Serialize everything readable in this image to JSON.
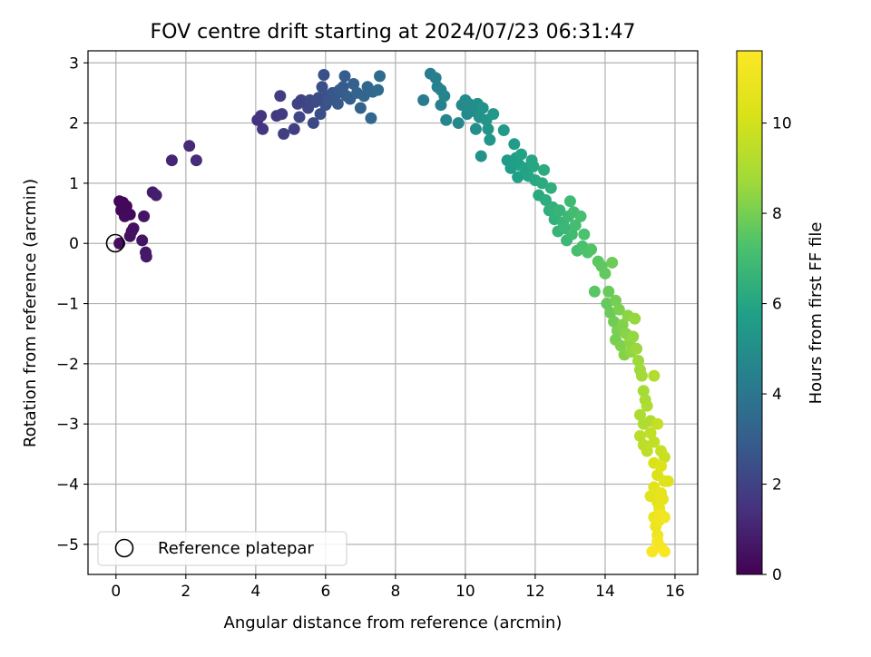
{
  "chart_data": {
    "type": "scatter",
    "title": "FOV centre drift starting at 2024/07/23 06:31:47",
    "xlabel": "Angular distance from reference (arcmin)",
    "ylabel": "Rotation from reference (arcmin)",
    "xlim": [
      -0.8,
      16.65
    ],
    "ylim": [
      -5.5,
      3.2
    ],
    "xticks": [
      0,
      2,
      4,
      6,
      8,
      10,
      12,
      14,
      16
    ],
    "yticks": [
      3,
      2,
      1,
      0,
      -1,
      -2,
      -3,
      -4,
      -5
    ],
    "grid": true,
    "legend": {
      "placement": "lower-left",
      "entries": [
        {
          "label": "Reference platepar",
          "marker": "open-circle"
        }
      ]
    },
    "reference_point": {
      "x": 0,
      "y": 0
    },
    "colorbar": {
      "label": "Hours from first FF file",
      "range": [
        0,
        11.6
      ],
      "ticks": [
        0,
        2,
        4,
        6,
        8,
        10
      ],
      "colormap": "viridis"
    },
    "series": [
      {
        "points": [
          [
            0.1,
            0.7,
            0.1
          ],
          [
            0.2,
            0.68,
            0.15
          ],
          [
            0.3,
            0.62,
            0.2
          ],
          [
            0.15,
            0.55,
            0.2
          ],
          [
            0.35,
            0.5,
            0.25
          ],
          [
            0.25,
            0.45,
            0.3
          ],
          [
            0.4,
            0.48,
            0.3
          ],
          [
            0.1,
            0.0,
            0.35
          ],
          [
            0.45,
            0.2,
            0.4
          ],
          [
            0.5,
            0.25,
            0.45
          ],
          [
            0.4,
            0.12,
            0.5
          ],
          [
            0.8,
            0.45,
            0.55
          ],
          [
            0.75,
            0.05,
            0.6
          ],
          [
            0.85,
            -0.15,
            0.65
          ],
          [
            0.87,
            -0.22,
            0.7
          ],
          [
            1.05,
            0.85,
            0.8
          ],
          [
            1.15,
            0.8,
            0.9
          ],
          [
            1.6,
            1.38,
            1.1
          ],
          [
            2.1,
            1.62,
            1.2
          ],
          [
            2.3,
            1.38,
            1.3
          ],
          [
            4.05,
            2.05,
            1.5
          ],
          [
            4.15,
            2.12,
            1.55
          ],
          [
            4.2,
            1.9,
            1.6
          ],
          [
            4.6,
            2.12,
            1.7
          ],
          [
            4.75,
            2.15,
            1.75
          ],
          [
            4.7,
            2.45,
            1.8
          ],
          [
            4.8,
            1.82,
            1.85
          ],
          [
            5.1,
            1.9,
            1.9
          ],
          [
            5.2,
            2.32,
            2.0
          ],
          [
            5.3,
            2.38,
            2.05
          ],
          [
            5.25,
            2.1,
            2.1
          ],
          [
            5.5,
            2.25,
            2.15
          ],
          [
            5.55,
            2.38,
            2.2
          ],
          [
            5.65,
            2.0,
            2.25
          ],
          [
            5.7,
            2.35,
            2.3
          ],
          [
            5.8,
            2.42,
            2.35
          ],
          [
            5.85,
            2.15,
            2.4
          ],
          [
            5.9,
            2.6,
            2.45
          ],
          [
            5.95,
            2.8,
            2.5
          ],
          [
            6.0,
            2.3,
            2.55
          ],
          [
            6.05,
            2.45,
            2.6
          ],
          [
            6.1,
            2.38,
            2.65
          ],
          [
            6.2,
            2.5,
            2.7
          ],
          [
            6.3,
            2.48,
            2.75
          ],
          [
            6.35,
            2.32,
            2.8
          ],
          [
            6.4,
            2.55,
            2.85
          ],
          [
            6.5,
            2.6,
            2.9
          ],
          [
            6.55,
            2.78,
            2.95
          ],
          [
            6.6,
            2.45,
            3.0
          ],
          [
            6.7,
            2.4,
            3.05
          ],
          [
            6.8,
            2.65,
            3.1
          ],
          [
            6.9,
            2.5,
            3.15
          ],
          [
            7.0,
            2.25,
            3.2
          ],
          [
            7.1,
            2.45,
            3.3
          ],
          [
            7.2,
            2.6,
            3.35
          ],
          [
            7.3,
            2.08,
            3.4
          ],
          [
            7.35,
            2.52,
            3.45
          ],
          [
            7.5,
            2.55,
            3.5
          ],
          [
            7.55,
            2.78,
            3.55
          ],
          [
            8.8,
            2.38,
            4.2
          ],
          [
            9.0,
            2.82,
            4.3
          ],
          [
            9.15,
            2.75,
            4.35
          ],
          [
            9.2,
            2.6,
            4.4
          ],
          [
            9.3,
            2.3,
            4.45
          ],
          [
            9.3,
            2.55,
            4.5
          ],
          [
            9.4,
            2.45,
            4.55
          ],
          [
            9.45,
            2.05,
            4.6
          ],
          [
            9.8,
            2.0,
            4.7
          ],
          [
            9.9,
            2.3,
            4.75
          ],
          [
            10.0,
            2.38,
            4.8
          ],
          [
            10.05,
            2.15,
            4.85
          ],
          [
            10.1,
            2.32,
            4.9
          ],
          [
            10.2,
            2.2,
            4.95
          ],
          [
            10.3,
            1.9,
            5.0
          ],
          [
            10.35,
            2.32,
            5.05
          ],
          [
            10.4,
            2.1,
            5.1
          ],
          [
            10.45,
            1.45,
            5.15
          ],
          [
            10.5,
            2.25,
            5.2
          ],
          [
            10.6,
            2.05,
            5.25
          ],
          [
            10.65,
            1.9,
            5.3
          ],
          [
            10.7,
            1.72,
            5.35
          ],
          [
            10.8,
            2.15,
            5.4
          ],
          [
            11.1,
            1.88,
            5.5
          ],
          [
            11.2,
            1.38,
            5.55
          ],
          [
            11.3,
            1.25,
            5.6
          ],
          [
            11.4,
            1.65,
            5.65
          ],
          [
            11.45,
            1.42,
            5.7
          ],
          [
            11.5,
            1.1,
            5.75
          ],
          [
            11.55,
            1.3,
            5.8
          ],
          [
            11.6,
            1.48,
            5.85
          ],
          [
            11.7,
            1.25,
            5.9
          ],
          [
            11.8,
            1.12,
            5.95
          ],
          [
            11.9,
            1.38,
            6.0
          ],
          [
            11.95,
            1.28,
            6.05
          ],
          [
            12.0,
            1.05,
            6.1
          ],
          [
            12.1,
            0.8,
            6.15
          ],
          [
            12.2,
            1.0,
            6.2
          ],
          [
            12.25,
            1.22,
            6.25
          ],
          [
            12.3,
            0.72,
            6.3
          ],
          [
            12.4,
            0.55,
            6.35
          ],
          [
            12.45,
            0.92,
            6.4
          ],
          [
            12.5,
            0.6,
            6.45
          ],
          [
            12.55,
            0.4,
            6.5
          ],
          [
            12.6,
            0.5,
            6.55
          ],
          [
            12.65,
            0.2,
            6.6
          ],
          [
            12.7,
            0.55,
            6.65
          ],
          [
            12.8,
            0.35,
            6.7
          ],
          [
            12.85,
            0.25,
            6.75
          ],
          [
            12.9,
            0.05,
            6.8
          ],
          [
            12.95,
            0.45,
            6.85
          ],
          [
            13.0,
            0.7,
            6.9
          ],
          [
            13.05,
            0.15,
            6.95
          ],
          [
            13.1,
            0.52,
            7.0
          ],
          [
            13.15,
            0.3,
            7.05
          ],
          [
            13.2,
            -0.12,
            7.1
          ],
          [
            13.3,
            0.45,
            7.15
          ],
          [
            13.35,
            -0.05,
            7.2
          ],
          [
            13.4,
            0.15,
            7.25
          ],
          [
            13.5,
            -0.15,
            7.3
          ],
          [
            13.6,
            -0.1,
            7.35
          ],
          [
            13.7,
            -0.8,
            7.5
          ],
          [
            13.8,
            -0.3,
            7.55
          ],
          [
            13.9,
            -0.38,
            7.6
          ],
          [
            14.0,
            -0.5,
            7.65
          ],
          [
            14.05,
            -1.0,
            7.7
          ],
          [
            14.1,
            -0.8,
            7.75
          ],
          [
            14.15,
            -1.15,
            7.8
          ],
          [
            14.2,
            -0.32,
            7.85
          ],
          [
            14.25,
            -1.3,
            7.9
          ],
          [
            14.3,
            -0.95,
            7.95
          ],
          [
            14.3,
            -1.6,
            8.0
          ],
          [
            14.35,
            -1.45,
            8.05
          ],
          [
            14.4,
            -1.1,
            8.1
          ],
          [
            14.45,
            -1.7,
            8.15
          ],
          [
            14.5,
            -1.35,
            8.2
          ],
          [
            14.55,
            -1.85,
            8.25
          ],
          [
            14.6,
            -1.5,
            8.3
          ],
          [
            14.65,
            -1.2,
            8.35
          ],
          [
            14.7,
            -1.65,
            8.4
          ],
          [
            14.75,
            -1.8,
            8.45
          ],
          [
            14.8,
            -1.55,
            8.5
          ],
          [
            14.85,
            -1.25,
            8.55
          ],
          [
            14.9,
            -1.75,
            8.6
          ],
          [
            14.95,
            -1.95,
            8.65
          ],
          [
            15.0,
            -2.1,
            8.7
          ],
          [
            15.05,
            -2.2,
            8.75
          ],
          [
            15.1,
            -2.45,
            8.85
          ],
          [
            15.15,
            -2.6,
            8.9
          ],
          [
            15.0,
            -2.85,
            9.0
          ],
          [
            15.1,
            -3.0,
            9.05
          ],
          [
            15.2,
            -2.7,
            9.1
          ],
          [
            15.3,
            -2.95,
            9.15
          ],
          [
            15.4,
            -2.2,
            9.2
          ],
          [
            15.0,
            -3.2,
            9.4
          ],
          [
            15.1,
            -3.35,
            9.45
          ],
          [
            15.2,
            -3.45,
            9.5
          ],
          [
            15.3,
            -3.15,
            9.55
          ],
          [
            15.4,
            -3.3,
            9.6
          ],
          [
            15.5,
            -3.0,
            9.65
          ],
          [
            15.6,
            -3.45,
            9.7
          ],
          [
            15.7,
            -3.55,
            9.75
          ],
          [
            15.4,
            -3.65,
            10.2
          ],
          [
            15.5,
            -3.85,
            10.25
          ],
          [
            15.6,
            -3.7,
            10.3
          ],
          [
            15.7,
            -3.95,
            10.35
          ],
          [
            15.8,
            -3.95,
            10.4
          ],
          [
            15.3,
            -4.2,
            10.5
          ],
          [
            15.4,
            -4.05,
            10.55
          ],
          [
            15.5,
            -4.3,
            10.6
          ],
          [
            15.55,
            -4.4,
            10.65
          ],
          [
            15.6,
            -4.15,
            10.7
          ],
          [
            15.65,
            -4.25,
            10.75
          ],
          [
            15.4,
            -4.55,
            10.9
          ],
          [
            15.45,
            -4.7,
            10.95
          ],
          [
            15.5,
            -4.85,
            11.0
          ],
          [
            15.55,
            -4.6,
            11.05
          ],
          [
            15.6,
            -4.5,
            11.1
          ],
          [
            15.7,
            -4.55,
            11.15
          ],
          [
            15.5,
            -4.95,
            11.2
          ],
          [
            15.6,
            -5.05,
            11.3
          ],
          [
            15.35,
            -5.12,
            11.4
          ],
          [
            15.7,
            -5.12,
            11.5
          ]
        ]
      }
    ]
  }
}
